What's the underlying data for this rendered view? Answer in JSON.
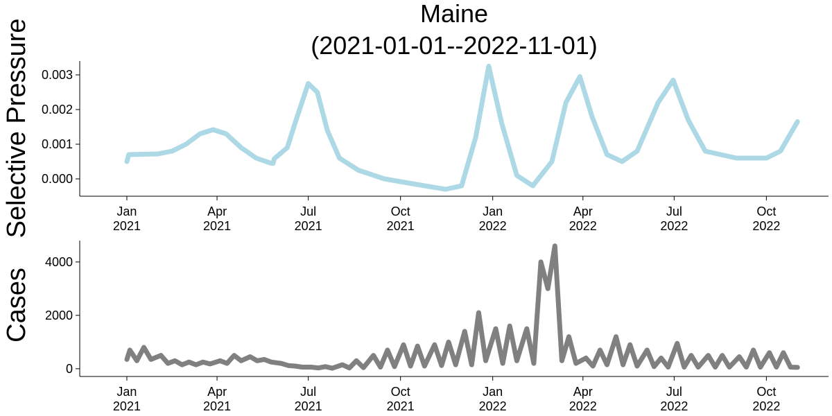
{
  "chart_data": [
    {
      "type": "line",
      "title": "Maine\n(2021-01-01--2022-11-01)",
      "y_label": "Selective Pressure",
      "x": [
        "2021-01-01",
        "2021-01-03",
        "2021-02-01",
        "2021-02-15",
        "2021-03-01",
        "2021-03-15",
        "2021-03-28",
        "2021-04-10",
        "2021-04-25",
        "2021-05-10",
        "2021-05-25",
        "2021-05-27",
        "2021-05-28",
        "2021-06-10",
        "2021-06-20",
        "2021-07-01",
        "2021-07-10",
        "2021-07-20",
        "2021-08-01",
        "2021-08-20",
        "2021-09-15",
        "2021-10-15",
        "2021-11-15",
        "2021-12-01",
        "2021-12-15",
        "2021-12-28",
        "2022-01-10",
        "2022-01-25",
        "2022-02-10",
        "2022-03-01",
        "2022-03-15",
        "2022-03-29",
        "2022-04-10",
        "2022-04-25",
        "2022-05-10",
        "2022-05-25",
        "2022-06-15",
        "2022-06-30",
        "2022-07-15",
        "2022-08-01",
        "2022-09-01",
        "2022-10-01",
        "2022-10-15",
        "2022-11-01"
      ],
      "series": [
        {
          "color": "#add8e6",
          "values": [
            0.0005,
            0.0007,
            0.00072,
            0.0008,
            0.001,
            0.0013,
            0.00142,
            0.0013,
            0.0009,
            0.0006,
            0.00045,
            0.00045,
            0.00058,
            0.0009,
            0.0018,
            0.00275,
            0.0025,
            0.0014,
            0.0006,
            0.00025,
            0.0,
            -0.00015,
            -0.0003,
            -0.0002,
            0.0012,
            0.00325,
            0.0016,
            0.0001,
            -0.0002,
            0.0005,
            0.0022,
            0.00295,
            0.0018,
            0.0007,
            0.0005,
            0.0008,
            0.0022,
            0.00285,
            0.0017,
            0.0008,
            0.0006,
            0.0006,
            0.0008,
            0.00165
          ]
        }
      ],
      "xlim": [
        "2020-11-15",
        "2022-12-02"
      ],
      "xticks": [
        {
          "value": "2021-01-01",
          "label": "Jan\n2021"
        },
        {
          "value": "2021-04-01",
          "label": "Apr\n2021"
        },
        {
          "value": "2021-07-01",
          "label": "Jul\n2021"
        },
        {
          "value": "2021-10-01",
          "label": "Oct\n2021"
        },
        {
          "value": "2022-01-01",
          "label": "Jan\n2022"
        },
        {
          "value": "2022-04-01",
          "label": "Apr\n2022"
        },
        {
          "value": "2022-07-01",
          "label": "Jul\n2022"
        },
        {
          "value": "2022-10-01",
          "label": "Oct\n2022"
        }
      ],
      "ylim": [
        -0.0005,
        0.0034
      ],
      "yticks": [
        {
          "value": 0,
          "label": "0.000"
        },
        {
          "value": 0.001,
          "label": "0.001"
        },
        {
          "value": 0.002,
          "label": "0.002"
        },
        {
          "value": 0.003,
          "label": "0.003"
        }
      ]
    },
    {
      "type": "line",
      "y_label": "Cases",
      "x": [
        "2021-01-01",
        "2021-01-04",
        "2021-01-11",
        "2021-01-18",
        "2021-01-25",
        "2021-02-04",
        "2021-02-11",
        "2021-02-18",
        "2021-02-25",
        "2021-03-04",
        "2021-03-11",
        "2021-03-18",
        "2021-03-25",
        "2021-04-04",
        "2021-04-11",
        "2021-04-18",
        "2021-04-25",
        "2021-05-04",
        "2021-05-11",
        "2021-05-18",
        "2021-05-25",
        "2021-06-04",
        "2021-06-11",
        "2021-06-18",
        "2021-06-25",
        "2021-07-04",
        "2021-07-11",
        "2021-07-18",
        "2021-07-25",
        "2021-08-04",
        "2021-08-11",
        "2021-08-18",
        "2021-08-25",
        "2021-09-04",
        "2021-09-11",
        "2021-09-18",
        "2021-09-25",
        "2021-10-04",
        "2021-10-11",
        "2021-10-18",
        "2021-10-25",
        "2021-11-04",
        "2021-11-11",
        "2021-11-18",
        "2021-11-25",
        "2021-12-04",
        "2021-12-11",
        "2021-12-18",
        "2021-12-25",
        "2022-01-04",
        "2022-01-11",
        "2022-01-18",
        "2022-01-25",
        "2022-02-04",
        "2022-02-11",
        "2022-02-18",
        "2022-02-25",
        "2022-03-04",
        "2022-03-11",
        "2022-03-18",
        "2022-03-25",
        "2022-04-04",
        "2022-04-11",
        "2022-04-18",
        "2022-04-25",
        "2022-05-04",
        "2022-05-11",
        "2022-05-18",
        "2022-05-25",
        "2022-06-04",
        "2022-06-11",
        "2022-06-18",
        "2022-06-25",
        "2022-07-04",
        "2022-07-11",
        "2022-07-18",
        "2022-07-25",
        "2022-08-04",
        "2022-08-11",
        "2022-08-18",
        "2022-08-25",
        "2022-09-04",
        "2022-09-11",
        "2022-09-18",
        "2022-09-25",
        "2022-10-04",
        "2022-10-11",
        "2022-10-18",
        "2022-10-25",
        "2022-11-01"
      ],
      "series": [
        {
          "color": "#808080",
          "values": [
            350,
            700,
            300,
            800,
            350,
            500,
            200,
            300,
            150,
            250,
            150,
            250,
            180,
            300,
            200,
            500,
            300,
            450,
            300,
            350,
            250,
            200,
            120,
            100,
            60,
            60,
            30,
            80,
            20,
            150,
            30,
            300,
            40,
            500,
            60,
            700,
            80,
            900,
            100,
            850,
            100,
            900,
            120,
            1000,
            150,
            1400,
            150,
            2100,
            300,
            1500,
            200,
            1600,
            300,
            1500,
            200,
            4000,
            3000,
            4600,
            300,
            1200,
            200,
            400,
            100,
            700,
            150,
            1200,
            150,
            900,
            100,
            700,
            80,
            400,
            60,
            950,
            60,
            500,
            60,
            500,
            60,
            500,
            60,
            450,
            60,
            700,
            60,
            600,
            60,
            600,
            60,
            50
          ]
        }
      ],
      "xlim": [
        "2020-11-15",
        "2022-12-02"
      ],
      "xticks": [
        {
          "value": "2021-01-01",
          "label": "Jan\n2021"
        },
        {
          "value": "2021-04-01",
          "label": "Apr\n2021"
        },
        {
          "value": "2021-07-01",
          "label": "Jul\n2021"
        },
        {
          "value": "2021-10-01",
          "label": "Oct\n2021"
        },
        {
          "value": "2022-01-01",
          "label": "Jan\n2022"
        },
        {
          "value": "2022-04-01",
          "label": "Apr\n2022"
        },
        {
          "value": "2022-07-01",
          "label": "Jul\n2022"
        },
        {
          "value": "2022-10-01",
          "label": "Oct\n2022"
        }
      ],
      "ylim": [
        -290,
        4800
      ],
      "yticks": [
        0,
        2000,
        4000
      ]
    }
  ]
}
